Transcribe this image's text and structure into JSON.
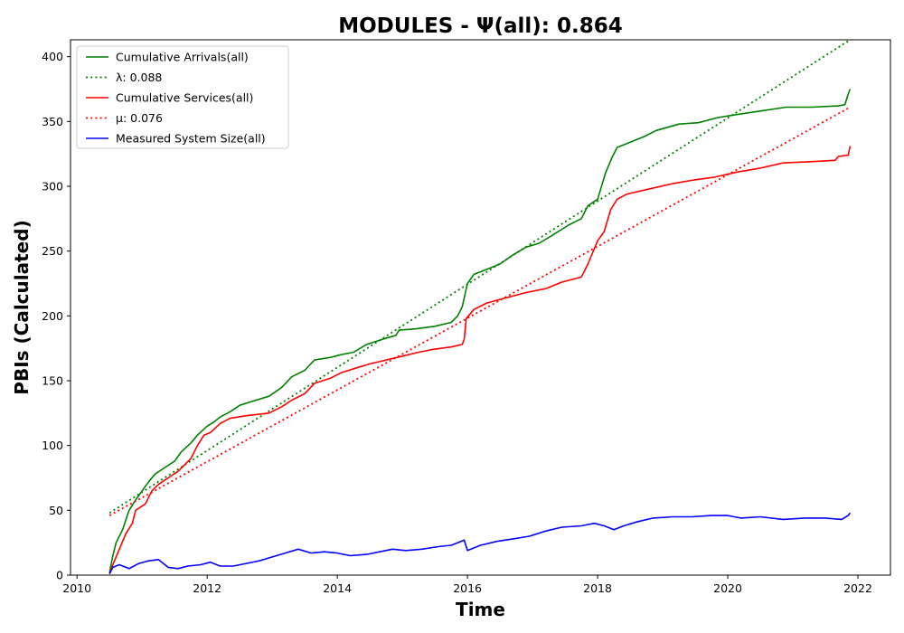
{
  "chart_data": {
    "type": "line",
    "title": "MODULES -  Ψ(all): 0.864",
    "xlabel": "Time",
    "ylabel": "PBIs (Calculated)",
    "xlim": [
      2009.9,
      2022.5
    ],
    "ylim": [
      0,
      413
    ],
    "xticks": [
      2010,
      2012,
      2014,
      2016,
      2018,
      2020,
      2022
    ],
    "yticks": [
      0,
      50,
      100,
      150,
      200,
      250,
      300,
      350,
      400
    ],
    "grid": false,
    "legend_position": "top-left",
    "series": [
      {
        "name": "Cumulative Arrivals(all)",
        "style": "solid",
        "color": "#008000",
        "points": [
          [
            2010.5,
            2
          ],
          [
            2010.55,
            15
          ],
          [
            2010.6,
            25
          ],
          [
            2010.7,
            35
          ],
          [
            2010.8,
            50
          ],
          [
            2010.9,
            58
          ],
          [
            2011.0,
            65
          ],
          [
            2011.1,
            72
          ],
          [
            2011.2,
            78
          ],
          [
            2011.35,
            83
          ],
          [
            2011.5,
            88
          ],
          [
            2011.6,
            95
          ],
          [
            2011.75,
            102
          ],
          [
            2011.85,
            108
          ],
          [
            2012.0,
            115
          ],
          [
            2012.1,
            118
          ],
          [
            2012.2,
            122
          ],
          [
            2012.35,
            126
          ],
          [
            2012.5,
            131
          ],
          [
            2012.75,
            135
          ],
          [
            2012.95,
            138
          ],
          [
            2013.15,
            145
          ],
          [
            2013.3,
            153
          ],
          [
            2013.5,
            158
          ],
          [
            2013.65,
            166
          ],
          [
            2013.9,
            168
          ],
          [
            2014.05,
            170
          ],
          [
            2014.25,
            172
          ],
          [
            2014.45,
            178
          ],
          [
            2014.7,
            182
          ],
          [
            2014.9,
            185
          ],
          [
            2014.95,
            189
          ],
          [
            2015.2,
            190
          ],
          [
            2015.5,
            192
          ],
          [
            2015.75,
            195
          ],
          [
            2015.85,
            200
          ],
          [
            2015.92,
            207
          ],
          [
            2016.0,
            225
          ],
          [
            2016.1,
            232
          ],
          [
            2016.3,
            236
          ],
          [
            2016.5,
            240
          ],
          [
            2016.7,
            247
          ],
          [
            2016.9,
            253
          ],
          [
            2017.1,
            256
          ],
          [
            2017.3,
            262
          ],
          [
            2017.55,
            270
          ],
          [
            2017.75,
            275
          ],
          [
            2017.85,
            285
          ],
          [
            2018.0,
            290
          ],
          [
            2018.12,
            310
          ],
          [
            2018.22,
            322
          ],
          [
            2018.3,
            330
          ],
          [
            2018.5,
            334
          ],
          [
            2018.7,
            338
          ],
          [
            2018.9,
            343
          ],
          [
            2019.25,
            348
          ],
          [
            2019.55,
            349
          ],
          [
            2019.85,
            353
          ],
          [
            2020.1,
            355
          ],
          [
            2020.5,
            358
          ],
          [
            2020.9,
            361
          ],
          [
            2021.3,
            361
          ],
          [
            2021.7,
            362
          ],
          [
            2021.8,
            363
          ],
          [
            2021.85,
            371
          ],
          [
            2021.88,
            375
          ]
        ]
      },
      {
        "name": "λ: 0.088",
        "style": "dotted",
        "color": "#008000",
        "points": [
          [
            2010.5,
            48
          ],
          [
            2021.88,
            413
          ]
        ]
      },
      {
        "name": "Cumulative Services(all)",
        "style": "solid",
        "color": "#ff0000",
        "points": [
          [
            2010.5,
            1
          ],
          [
            2010.55,
            8
          ],
          [
            2010.65,
            20
          ],
          [
            2010.75,
            32
          ],
          [
            2010.85,
            40
          ],
          [
            2010.9,
            50
          ],
          [
            2011.05,
            55
          ],
          [
            2011.15,
            65
          ],
          [
            2011.25,
            70
          ],
          [
            2011.4,
            75
          ],
          [
            2011.55,
            80
          ],
          [
            2011.65,
            85
          ],
          [
            2011.75,
            90
          ],
          [
            2011.85,
            100
          ],
          [
            2011.95,
            108
          ],
          [
            2012.05,
            110
          ],
          [
            2012.2,
            117
          ],
          [
            2012.35,
            121
          ],
          [
            2012.6,
            123
          ],
          [
            2012.95,
            125
          ],
          [
            2013.15,
            130
          ],
          [
            2013.3,
            135
          ],
          [
            2013.5,
            140
          ],
          [
            2013.65,
            148
          ],
          [
            2013.9,
            152
          ],
          [
            2014.05,
            156
          ],
          [
            2014.3,
            160
          ],
          [
            2014.5,
            163
          ],
          [
            2014.75,
            166
          ],
          [
            2015.0,
            169
          ],
          [
            2015.25,
            172
          ],
          [
            2015.45,
            174
          ],
          [
            2015.75,
            176
          ],
          [
            2015.92,
            178
          ],
          [
            2015.95,
            182
          ],
          [
            2015.98,
            198
          ],
          [
            2016.1,
            205
          ],
          [
            2016.3,
            210
          ],
          [
            2016.6,
            214
          ],
          [
            2016.9,
            218
          ],
          [
            2017.2,
            221
          ],
          [
            2017.45,
            226
          ],
          [
            2017.75,
            230
          ],
          [
            2017.85,
            240
          ],
          [
            2018.0,
            258
          ],
          [
            2018.1,
            265
          ],
          [
            2018.2,
            282
          ],
          [
            2018.3,
            290
          ],
          [
            2018.45,
            294
          ],
          [
            2018.8,
            298
          ],
          [
            2019.15,
            302
          ],
          [
            2019.5,
            305
          ],
          [
            2019.8,
            307
          ],
          [
            2020.15,
            311
          ],
          [
            2020.5,
            314
          ],
          [
            2020.85,
            318
          ],
          [
            2021.3,
            319
          ],
          [
            2021.65,
            320
          ],
          [
            2021.7,
            323
          ],
          [
            2021.85,
            324
          ],
          [
            2021.88,
            331
          ]
        ]
      },
      {
        "name": "μ: 0.076",
        "style": "dotted",
        "color": "#ff0000",
        "points": [
          [
            2010.5,
            46
          ],
          [
            2021.88,
            361
          ]
        ]
      },
      {
        "name": "Measured System Size(all)",
        "style": "solid",
        "color": "#0000ff",
        "points": [
          [
            2010.5,
            1
          ],
          [
            2010.55,
            6
          ],
          [
            2010.65,
            8
          ],
          [
            2010.8,
            5
          ],
          [
            2010.95,
            9
          ],
          [
            2011.1,
            11
          ],
          [
            2011.25,
            12
          ],
          [
            2011.4,
            6
          ],
          [
            2011.55,
            5
          ],
          [
            2011.7,
            7
          ],
          [
            2011.9,
            8
          ],
          [
            2012.05,
            10
          ],
          [
            2012.2,
            7
          ],
          [
            2012.4,
            7
          ],
          [
            2012.6,
            9
          ],
          [
            2012.8,
            11
          ],
          [
            2013.0,
            14
          ],
          [
            2013.2,
            17
          ],
          [
            2013.4,
            20
          ],
          [
            2013.6,
            17
          ],
          [
            2013.8,
            18
          ],
          [
            2014.0,
            17
          ],
          [
            2014.2,
            15
          ],
          [
            2014.45,
            16
          ],
          [
            2014.65,
            18
          ],
          [
            2014.85,
            20
          ],
          [
            2015.05,
            19
          ],
          [
            2015.3,
            20
          ],
          [
            2015.55,
            22
          ],
          [
            2015.75,
            23
          ],
          [
            2015.95,
            27
          ],
          [
            2016.0,
            19
          ],
          [
            2016.2,
            23
          ],
          [
            2016.45,
            26
          ],
          [
            2016.7,
            28
          ],
          [
            2016.95,
            30
          ],
          [
            2017.2,
            34
          ],
          [
            2017.45,
            37
          ],
          [
            2017.75,
            38
          ],
          [
            2017.95,
            40
          ],
          [
            2018.1,
            38
          ],
          [
            2018.25,
            35
          ],
          [
            2018.4,
            38
          ],
          [
            2018.6,
            41
          ],
          [
            2018.85,
            44
          ],
          [
            2019.15,
            45
          ],
          [
            2019.45,
            45
          ],
          [
            2019.75,
            46
          ],
          [
            2020.0,
            46
          ],
          [
            2020.2,
            44
          ],
          [
            2020.5,
            45
          ],
          [
            2020.85,
            43
          ],
          [
            2021.2,
            44
          ],
          [
            2021.5,
            44
          ],
          [
            2021.75,
            43
          ],
          [
            2021.85,
            46
          ],
          [
            2021.88,
            48
          ]
        ]
      }
    ]
  }
}
